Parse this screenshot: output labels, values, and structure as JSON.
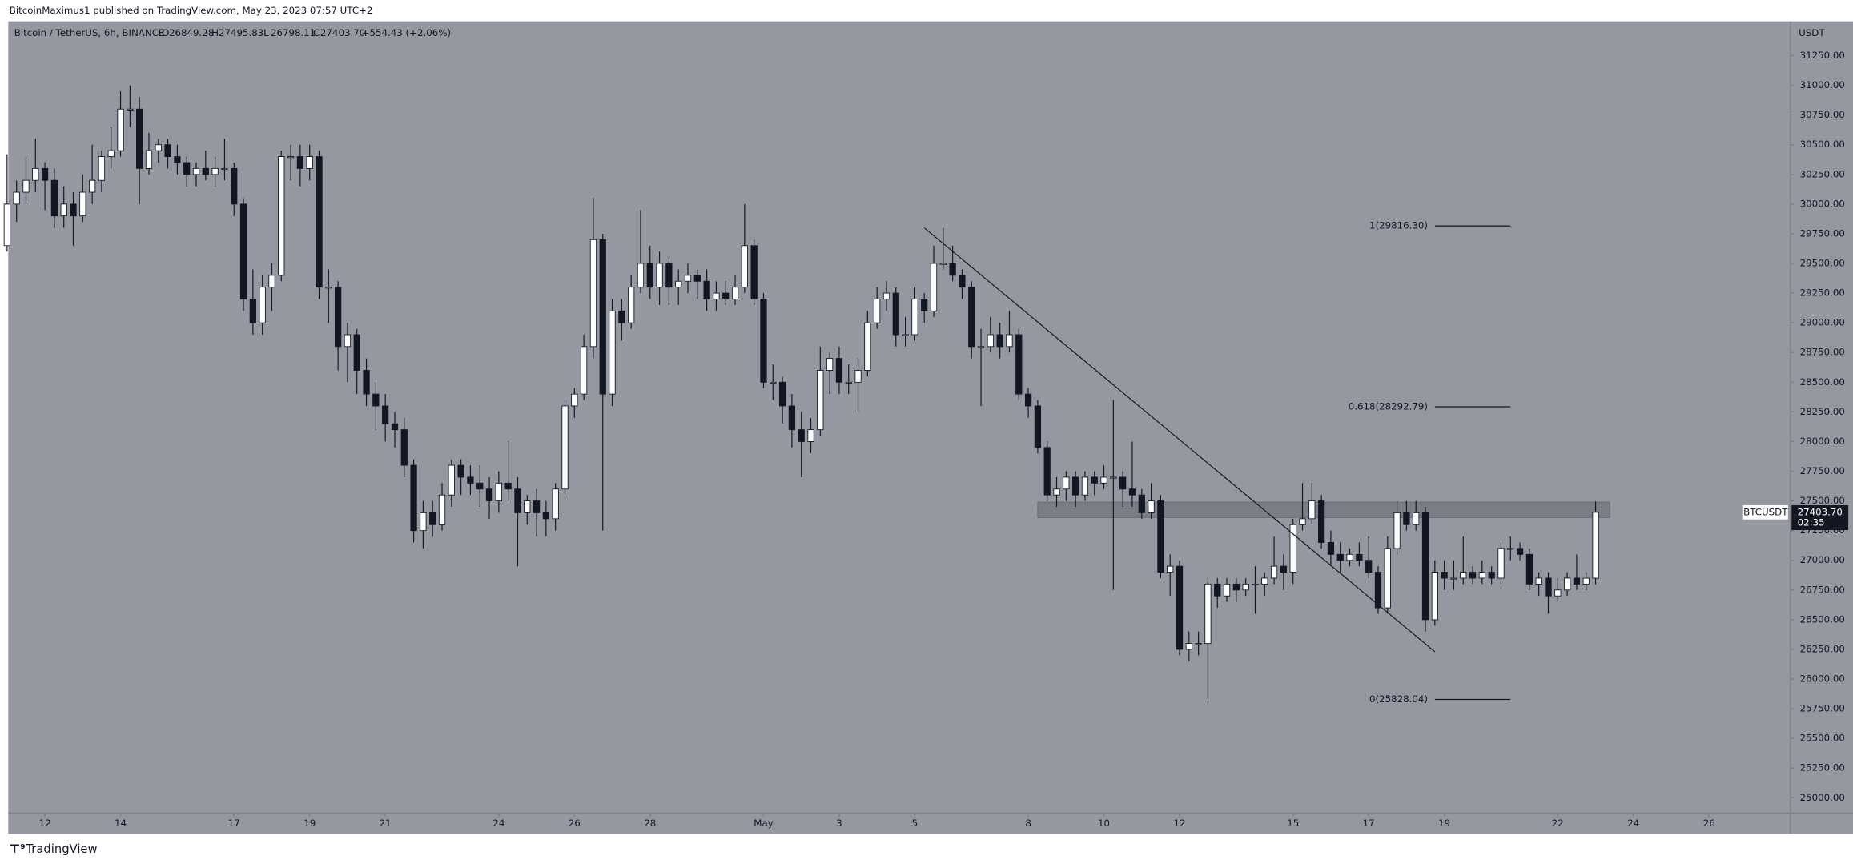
{
  "header": {
    "publisher": "BitcoinMaximus1 published on TradingView.com, May 23, 2023 07:57 UTC+2"
  },
  "footer": {
    "brand": "TradingView"
  },
  "chart_data": {
    "type": "candlestick",
    "title": "Bitcoin / TetherUS, 6h, BINANCE",
    "legend": [
      {
        "label": "O",
        "value": "26849.28"
      },
      {
        "label": "H",
        "value": "27495.83"
      },
      {
        "label": "L",
        "value": "26798.11"
      },
      {
        "label": "C",
        "value": "27403.70"
      }
    ],
    "change": "+554.43 (+2.06%)",
    "y_axis_label": "USDT",
    "up_color": "#ffffff",
    "down_color": "#131722",
    "background": "#9598a1",
    "xlim": [
      -0.75,
      188.6
    ],
    "ylim": [
      24871,
      31519
    ],
    "xticks": [
      {
        "value": 4,
        "label": "12"
      },
      {
        "value": 12,
        "label": "14"
      },
      {
        "value": 24,
        "label": "17"
      },
      {
        "value": 32,
        "label": "19"
      },
      {
        "value": 40,
        "label": "21"
      },
      {
        "value": 52,
        "label": "24"
      },
      {
        "value": 60,
        "label": "26"
      },
      {
        "value": 68,
        "label": "28"
      },
      {
        "value": 80,
        "label": "May"
      },
      {
        "value": 88,
        "label": "3"
      },
      {
        "value": 96,
        "label": "5"
      },
      {
        "value": 108,
        "label": "8"
      },
      {
        "value": 116,
        "label": "10"
      },
      {
        "value": 124,
        "label": "12"
      },
      {
        "value": 136,
        "label": "15"
      },
      {
        "value": 144,
        "label": "17"
      },
      {
        "value": 152,
        "label": "19"
      },
      {
        "value": 164,
        "label": "22"
      },
      {
        "value": 172,
        "label": "24"
      },
      {
        "value": 180,
        "label": "26"
      }
    ],
    "yticks": [
      {
        "value": 25000,
        "label": "25000.00"
      },
      {
        "value": 25250,
        "label": "25250.00"
      },
      {
        "value": 25500,
        "label": "25500.00"
      },
      {
        "value": 25750,
        "label": "25750.00"
      },
      {
        "value": 26000,
        "label": "26000.00"
      },
      {
        "value": 26250,
        "label": "26250.00"
      },
      {
        "value": 26500,
        "label": "26500.00"
      },
      {
        "value": 26750,
        "label": "26750.00"
      },
      {
        "value": 27000,
        "label": "27000.00"
      },
      {
        "value": 27250,
        "label": "27250.00"
      },
      {
        "value": 27500,
        "label": "27500.00"
      },
      {
        "value": 27750,
        "label": "27750.00"
      },
      {
        "value": 28000,
        "label": "28000.00"
      },
      {
        "value": 28250,
        "label": "28250.00"
      },
      {
        "value": 28500,
        "label": "28500.00"
      },
      {
        "value": 28750,
        "label": "28750.00"
      },
      {
        "value": 29000,
        "label": "29000.00"
      },
      {
        "value": 29250,
        "label": "29250.00"
      },
      {
        "value": 29500,
        "label": "29500.00"
      },
      {
        "value": 29750,
        "label": "29750.00"
      },
      {
        "value": 30000,
        "label": "30000.00"
      },
      {
        "value": 30250,
        "label": "30250.00"
      },
      {
        "value": 30500,
        "label": "30500.00"
      },
      {
        "value": 30750,
        "label": "30750.00"
      },
      {
        "value": 31000,
        "label": "31000.00"
      },
      {
        "value": 31250,
        "label": "31250.00"
      }
    ],
    "ohlc": [
      [
        29650,
        30420,
        29600,
        30000
      ],
      [
        30000,
        30200,
        29850,
        30100
      ],
      [
        30100,
        30400,
        30000,
        30200
      ],
      [
        30200,
        30550,
        30100,
        30300
      ],
      [
        30300,
        30350,
        29950,
        30200
      ],
      [
        30200,
        30300,
        29800,
        29900
      ],
      [
        29900,
        30150,
        29800,
        30000
      ],
      [
        30000,
        30100,
        29650,
        29900
      ],
      [
        29900,
        30250,
        29850,
        30100
      ],
      [
        30100,
        30500,
        30000,
        30200
      ],
      [
        30200,
        30450,
        30100,
        30400
      ],
      [
        30400,
        30650,
        30300,
        30450
      ],
      [
        30450,
        30950,
        30400,
        30800
      ],
      [
        30800,
        31000,
        30650,
        30800
      ],
      [
        30800,
        30900,
        30000,
        30300
      ],
      [
        30300,
        30600,
        30250,
        30450
      ],
      [
        30450,
        30550,
        30350,
        30500
      ],
      [
        30500,
        30550,
        30300,
        30400
      ],
      [
        30400,
        30500,
        30250,
        30350
      ],
      [
        30350,
        30400,
        30150,
        30250
      ],
      [
        30250,
        30350,
        30150,
        30300
      ],
      [
        30300,
        30450,
        30200,
        30250
      ],
      [
        30250,
        30400,
        30150,
        30300
      ],
      [
        30300,
        30550,
        30200,
        30300
      ],
      [
        30300,
        30350,
        29900,
        30000
      ],
      [
        30000,
        30050,
        29100,
        29200
      ],
      [
        29200,
        29450,
        28900,
        29000
      ],
      [
        29000,
        29400,
        28900,
        29300
      ],
      [
        29300,
        29500,
        29100,
        29400
      ],
      [
        29400,
        30450,
        29350,
        30400
      ],
      [
        30400,
        30500,
        30200,
        30400
      ],
      [
        30400,
        30500,
        30150,
        30300
      ],
      [
        30300,
        30500,
        30200,
        30400
      ],
      [
        30400,
        30450,
        29200,
        29300
      ],
      [
        29300,
        29450,
        29000,
        29300
      ],
      [
        29300,
        29350,
        28600,
        28800
      ],
      [
        28800,
        29000,
        28500,
        28900
      ],
      [
        28900,
        28950,
        28400,
        28600
      ],
      [
        28600,
        28700,
        28300,
        28400
      ],
      [
        28400,
        28500,
        28100,
        28300
      ],
      [
        28300,
        28400,
        28000,
        28150
      ],
      [
        28150,
        28250,
        27950,
        28100
      ],
      [
        28100,
        28200,
        27700,
        27800
      ],
      [
        27800,
        27850,
        27150,
        27250
      ],
      [
        27250,
        27500,
        27100,
        27400
      ],
      [
        27400,
        27500,
        27200,
        27300
      ],
      [
        27300,
        27650,
        27250,
        27550
      ],
      [
        27550,
        27850,
        27450,
        27800
      ],
      [
        27800,
        27850,
        27550,
        27700
      ],
      [
        27700,
        27800,
        27550,
        27650
      ],
      [
        27650,
        27800,
        27450,
        27600
      ],
      [
        27600,
        27700,
        27350,
        27500
      ],
      [
        27500,
        27750,
        27400,
        27650
      ],
      [
        27650,
        28000,
        27500,
        27600
      ],
      [
        27600,
        27700,
        26950,
        27400
      ],
      [
        27400,
        27550,
        27300,
        27500
      ],
      [
        27500,
        27600,
        27200,
        27400
      ],
      [
        27400,
        27500,
        27200,
        27350
      ],
      [
        27350,
        27650,
        27250,
        27600
      ],
      [
        27600,
        28350,
        27550,
        28300
      ],
      [
        28300,
        28450,
        28200,
        28400
      ],
      [
        28400,
        28900,
        28350,
        28800
      ],
      [
        28800,
        30050,
        28700,
        29700
      ],
      [
        29700,
        29750,
        27250,
        28400
      ],
      [
        28400,
        29200,
        28300,
        29100
      ],
      [
        29100,
        29200,
        28850,
        29000
      ],
      [
        29000,
        29400,
        28950,
        29300
      ],
      [
        29300,
        29950,
        29250,
        29500
      ],
      [
        29500,
        29650,
        29200,
        29300
      ],
      [
        29300,
        29600,
        29150,
        29500
      ],
      [
        29500,
        29550,
        29150,
        29300
      ],
      [
        29300,
        29450,
        29150,
        29350
      ],
      [
        29350,
        29500,
        29250,
        29400
      ],
      [
        29400,
        29450,
        29200,
        29350
      ],
      [
        29350,
        29450,
        29100,
        29200
      ],
      [
        29200,
        29350,
        29100,
        29250
      ],
      [
        29250,
        29350,
        29150,
        29200
      ],
      [
        29200,
        29400,
        29150,
        29300
      ],
      [
        29300,
        30000,
        29250,
        29650
      ],
      [
        29650,
        29700,
        29150,
        29200
      ],
      [
        29200,
        29250,
        28450,
        28500
      ],
      [
        28500,
        28650,
        28350,
        28500
      ],
      [
        28500,
        28550,
        28150,
        28300
      ],
      [
        28300,
        28400,
        27950,
        28100
      ],
      [
        28100,
        28250,
        27700,
        28000
      ],
      [
        28000,
        28200,
        27900,
        28100
      ],
      [
        28100,
        28800,
        28050,
        28600
      ],
      [
        28600,
        28750,
        28400,
        28700
      ],
      [
        28700,
        28800,
        28400,
        28500
      ],
      [
        28500,
        28650,
        28400,
        28500
      ],
      [
        28500,
        28700,
        28250,
        28600
      ],
      [
        28600,
        29100,
        28550,
        29000
      ],
      [
        29000,
        29300,
        28950,
        29200
      ],
      [
        29200,
        29350,
        29100,
        29250
      ],
      [
        29250,
        29300,
        28800,
        28900
      ],
      [
        28900,
        29050,
        28800,
        28900
      ],
      [
        28900,
        29300,
        28850,
        29200
      ],
      [
        29200,
        29250,
        29000,
        29100
      ],
      [
        29100,
        29650,
        29050,
        29500
      ],
      [
        29500,
        29800,
        29450,
        29500
      ],
      [
        29500,
        29650,
        29350,
        29400
      ],
      [
        29400,
        29450,
        29200,
        29300
      ],
      [
        29300,
        29350,
        28700,
        28800
      ],
      [
        28800,
        28950,
        28300,
        28800
      ],
      [
        28800,
        29050,
        28750,
        28900
      ],
      [
        28900,
        29000,
        28700,
        28800
      ],
      [
        28800,
        29100,
        28750,
        28900
      ],
      [
        28900,
        28950,
        28350,
        28400
      ],
      [
        28400,
        28450,
        28200,
        28300
      ],
      [
        28300,
        28350,
        27900,
        27950
      ],
      [
        27950,
        28000,
        27500,
        27550
      ],
      [
        27550,
        27700,
        27450,
        27600
      ],
      [
        27600,
        27750,
        27500,
        27700
      ],
      [
        27700,
        27750,
        27450,
        27550
      ],
      [
        27550,
        27750,
        27500,
        27700
      ],
      [
        27700,
        27750,
        27550,
        27650
      ],
      [
        27650,
        27800,
        27600,
        27700
      ],
      [
        27700,
        28350,
        26750,
        27700
      ],
      [
        27700,
        27750,
        27450,
        27600
      ],
      [
        27600,
        28000,
        27450,
        27550
      ],
      [
        27550,
        27600,
        27350,
        27400
      ],
      [
        27400,
        27650,
        27350,
        27500
      ],
      [
        27500,
        27550,
        26850,
        26900
      ],
      [
        26900,
        27050,
        26700,
        26950
      ],
      [
        26950,
        27000,
        26200,
        26250
      ],
      [
        26250,
        26400,
        26150,
        26300
      ],
      [
        26300,
        26400,
        26200,
        26300
      ],
      [
        26300,
        26850,
        25828.04,
        26800
      ],
      [
        26800,
        26850,
        26600,
        26700
      ],
      [
        26700,
        26850,
        26650,
        26800
      ],
      [
        26800,
        26850,
        26650,
        26750
      ],
      [
        26750,
        26850,
        26700,
        26800
      ],
      [
        26800,
        26950,
        26550,
        26800
      ],
      [
        26800,
        26900,
        26700,
        26850
      ],
      [
        26850,
        27200,
        26800,
        26950
      ],
      [
        26950,
        27050,
        26750,
        26900
      ],
      [
        26900,
        27350,
        26800,
        27300
      ],
      [
        27300,
        27650,
        27250,
        27350
      ],
      [
        27350,
        27650,
        27300,
        27500
      ],
      [
        27500,
        27550,
        27100,
        27150
      ],
      [
        27150,
        27250,
        26950,
        27050
      ],
      [
        27050,
        27150,
        26900,
        27000
      ],
      [
        27000,
        27100,
        26950,
        27050
      ],
      [
        27050,
        27150,
        26950,
        27000
      ],
      [
        27000,
        27200,
        26850,
        26900
      ],
      [
        26900,
        26950,
        26550,
        26600
      ],
      [
        26600,
        27200,
        26550,
        27100
      ],
      [
        27100,
        27500,
        27050,
        27400
      ],
      [
        27400,
        27500,
        27250,
        27300
      ],
      [
        27300,
        27500,
        27250,
        27400
      ],
      [
        27400,
        27450,
        26400,
        26500
      ],
      [
        26500,
        27000,
        26450,
        26900
      ],
      [
        26900,
        27000,
        26750,
        26850
      ],
      [
        26850,
        27000,
        26750,
        26850
      ],
      [
        26850,
        27200,
        26800,
        26900
      ],
      [
        26900,
        26950,
        26800,
        26850
      ],
      [
        26850,
        27000,
        26800,
        26900
      ],
      [
        26900,
        26950,
        26800,
        26850
      ],
      [
        26850,
        27150,
        26800,
        27100
      ],
      [
        27100,
        27200,
        27000,
        27100
      ],
      [
        27100,
        27150,
        27000,
        27050
      ],
      [
        27050,
        27100,
        26750,
        26800
      ],
      [
        26800,
        26900,
        26700,
        26850
      ],
      [
        26850,
        26900,
        26550,
        26700
      ],
      [
        26700,
        26850,
        26650,
        26750
      ],
      [
        26750,
        26900,
        26700,
        26850
      ],
      [
        26850,
        27050,
        26750,
        26800
      ],
      [
        26800,
        26900,
        26750,
        26849.28
      ],
      [
        26849.28,
        27495.83,
        26798.11,
        27403.7
      ]
    ],
    "fib_levels": [
      {
        "value": 29816.3,
        "label": "1(29816.30)"
      },
      {
        "value": 28292.79,
        "label": "0.618(28292.79)"
      },
      {
        "value": 25828.04,
        "label": "0(25828.04)"
      }
    ],
    "fib_x": [
      151,
      159
    ],
    "trendline": {
      "x": [
        97,
        151
      ],
      "values": [
        29800,
        26230
      ]
    },
    "zone": {
      "x": [
        109,
        169.5
      ],
      "values": [
        27360,
        27490
      ]
    },
    "last_price": {
      "symbol": "BTCUSDT",
      "label": "27403.70",
      "countdown": "02:35",
      "value": 27403.7
    }
  }
}
